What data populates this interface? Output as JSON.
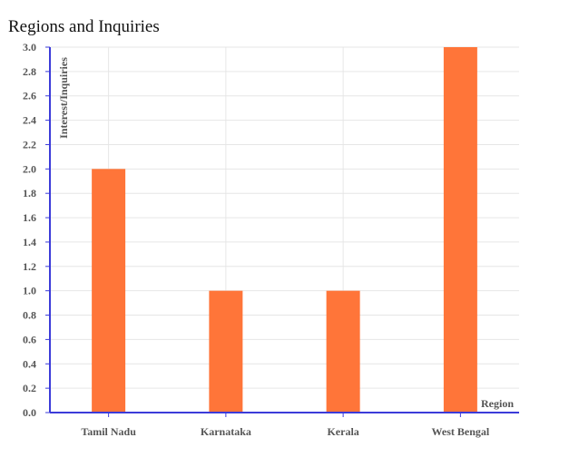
{
  "chart_data": {
    "type": "bar",
    "title": "Regions and Inquiries",
    "xlabel": "Region",
    "ylabel": "Interest/Inquiries",
    "categories": [
      "Tamil Nadu",
      "Karnataka",
      "Kerala",
      "West Bengal"
    ],
    "values": [
      2,
      1,
      1,
      3
    ],
    "ylim": [
      0,
      3
    ],
    "yticks": [
      "0.0",
      "0.2",
      "0.4",
      "0.6",
      "0.8",
      "1.0",
      "1.2",
      "1.4",
      "1.6",
      "1.8",
      "2.0",
      "2.2",
      "2.4",
      "2.6",
      "2.8",
      "3.0"
    ],
    "grid": true,
    "bar_color": "#ff7539",
    "axis_color": "#3b3bd9",
    "grid_color": "#e6e6e6"
  }
}
